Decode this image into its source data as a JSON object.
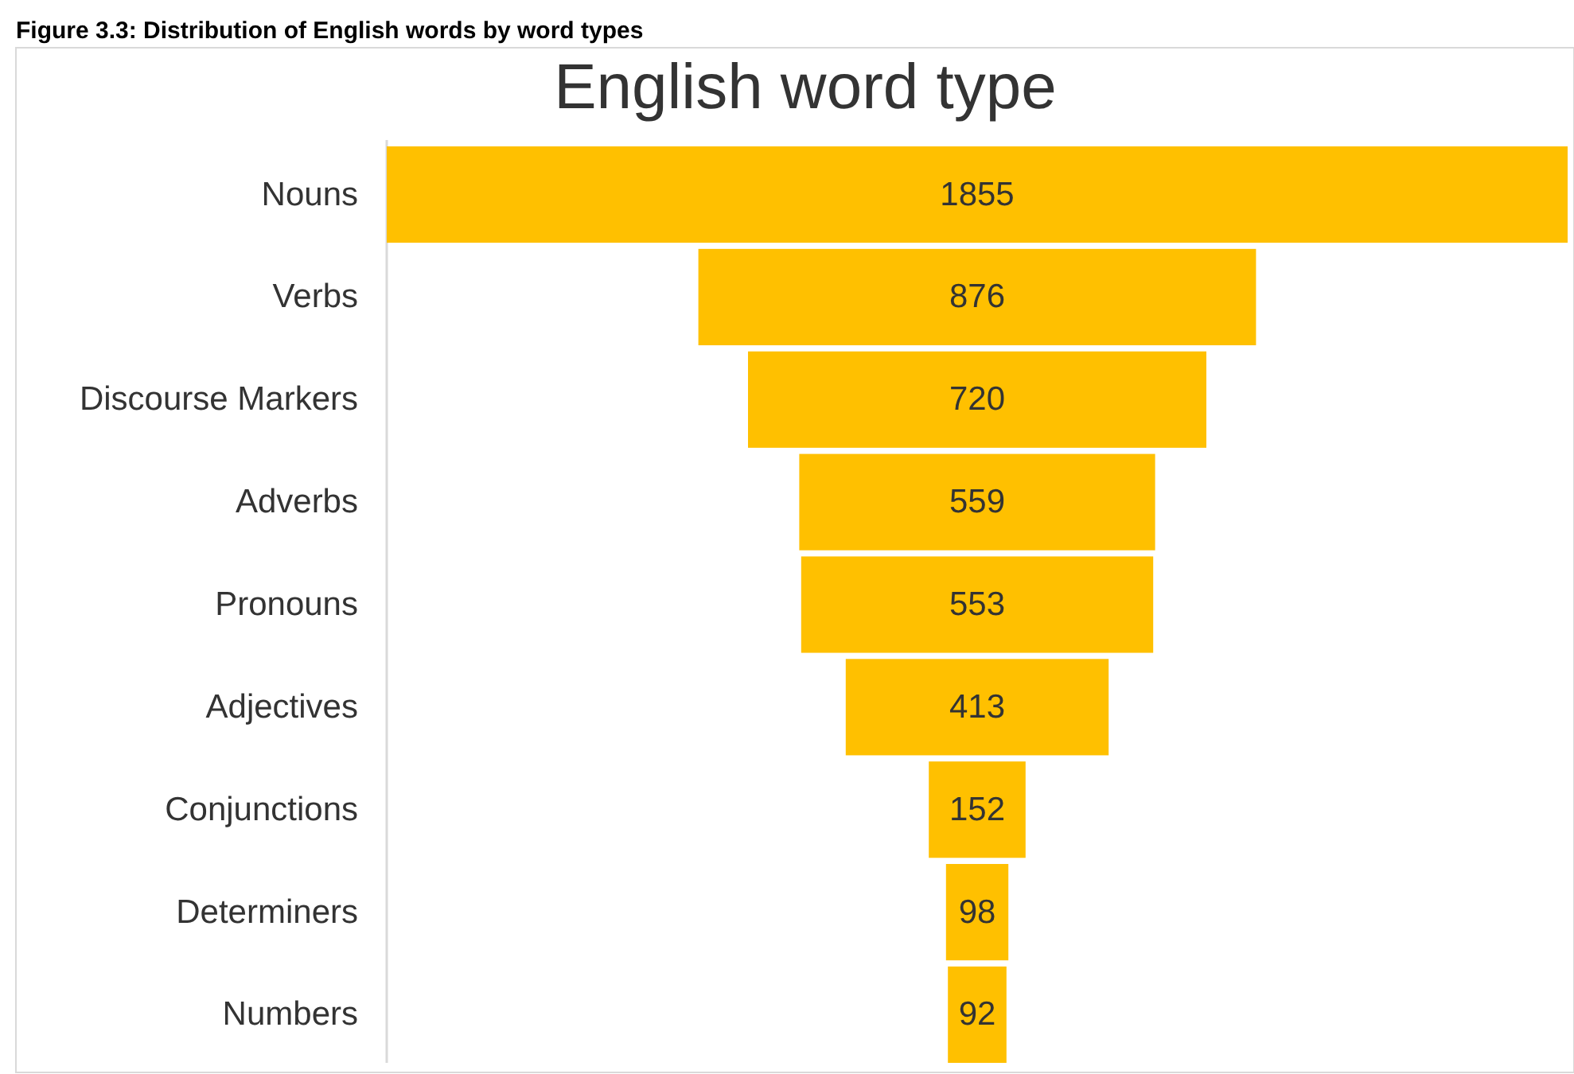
{
  "chart_data": {
    "type": "other",
    "title": "English word type",
    "annotations": [
      "Figure 3.3: Distribution of English words by word types"
    ],
    "categories": [
      "Nouns",
      "Verbs",
      "Discourse Markers",
      "Adverbs",
      "Pronouns",
      "Adjectives",
      "Conjunctions",
      "Determiners",
      "Numbers"
    ],
    "values": [
      1855,
      876,
      720,
      559,
      553,
      413,
      152,
      98,
      92
    ],
    "color": "#ffc000",
    "data_labels": true
  }
}
